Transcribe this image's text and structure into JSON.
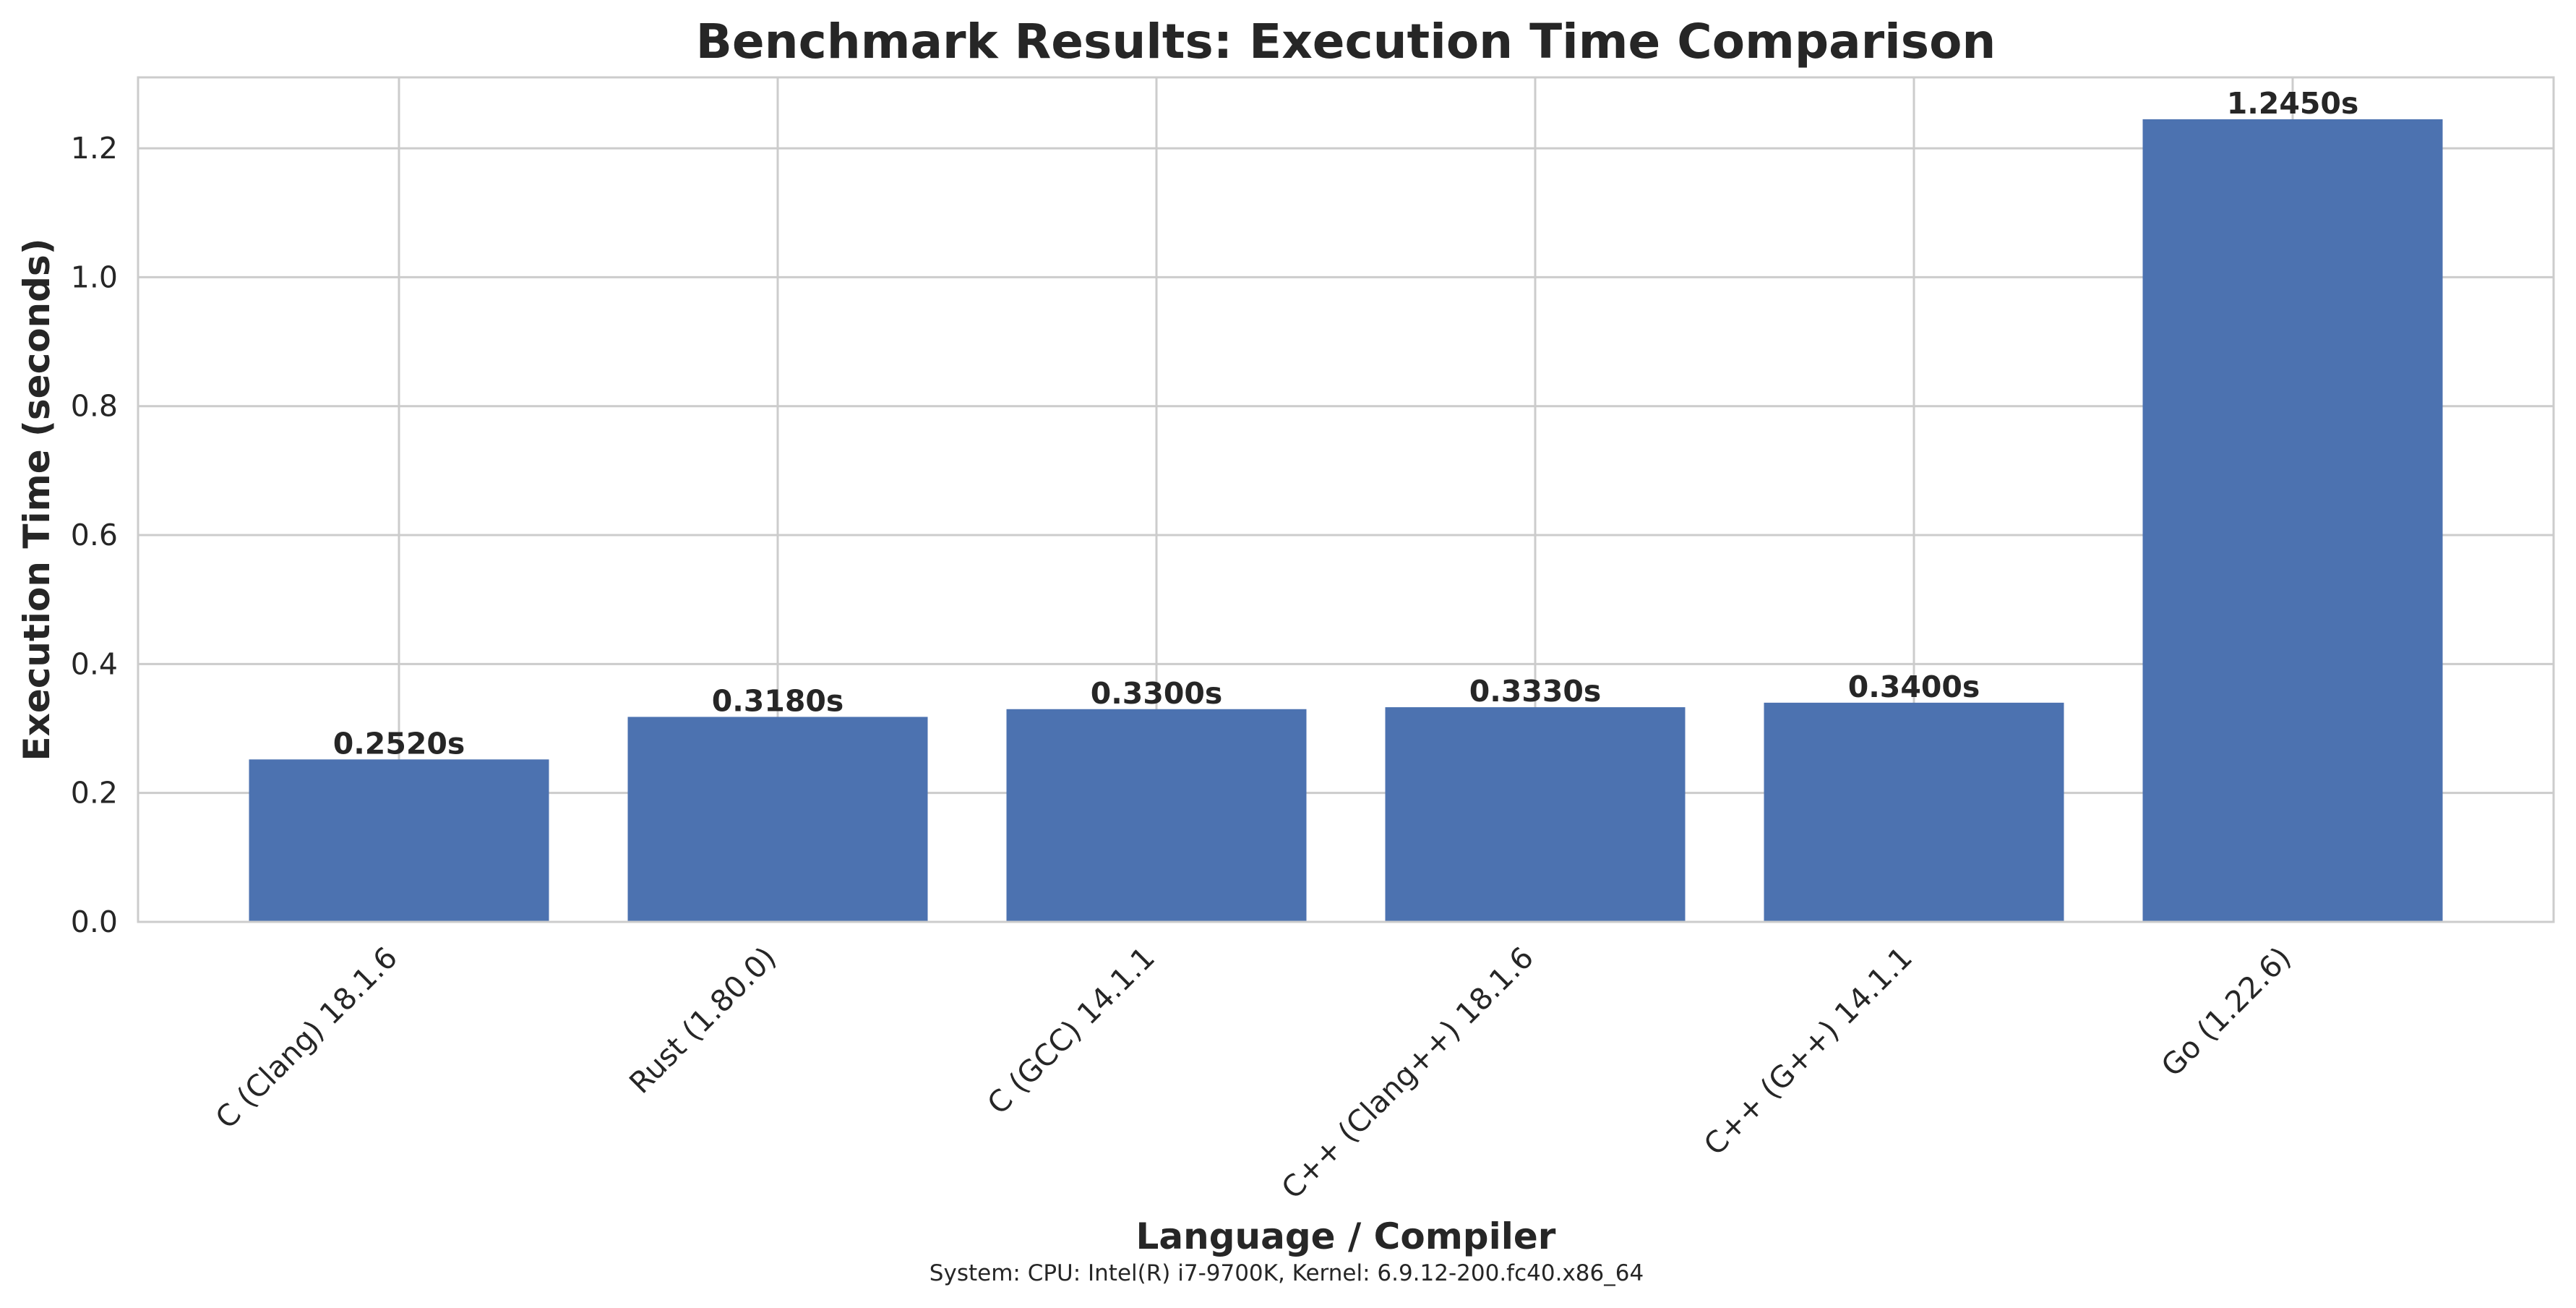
{
  "chart_data": {
    "type": "bar",
    "title": "Benchmark Results: Execution Time Comparison",
    "xlabel": "Language / Compiler",
    "ylabel": "Execution Time (seconds)",
    "categories": [
      "C (Clang) 18.1.6",
      "Rust (1.80.0)",
      "C (GCC) 14.1.1",
      "C++ (Clang++) 18.1.6",
      "C++ (G++) 14.1.1",
      "Go (1.22.6)"
    ],
    "values": [
      0.252,
      0.318,
      0.33,
      0.333,
      0.34,
      1.245
    ],
    "data_labels": [
      "0.2520s",
      "0.3180s",
      "0.3300s",
      "0.3330s",
      "0.3400s",
      "1.2450s"
    ],
    "ylim": [
      0,
      1.31
    ],
    "yticks": [
      0.0,
      0.2,
      0.4,
      0.6,
      0.8,
      1.0,
      1.2
    ],
    "ytick_labels": [
      "0.0",
      "0.2",
      "0.4",
      "0.6",
      "0.8",
      "1.0",
      "1.2"
    ],
    "grid": true,
    "bar_color": "#4c72b0",
    "grid_color": "#cccccc",
    "footnote": "System: CPU: Intel(R) i7-9700K, Kernel: 6.9.12-200.fc40.x86_64"
  }
}
